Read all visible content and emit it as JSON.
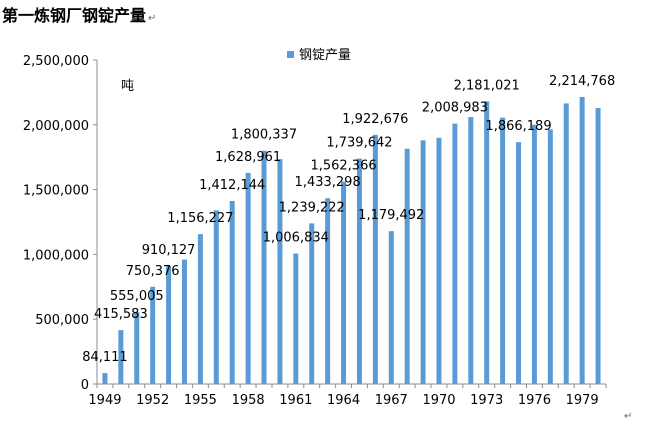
{
  "title": "第一炼钢厂钢锭产量",
  "return_mark": "↵",
  "chart_data": {
    "type": "bar",
    "title": "第一炼钢厂钢锭产量",
    "unit_label": "吨",
    "legend": "钢锭产量",
    "legend_position": "top",
    "bar_color": "#5b9bd5",
    "ylim": [
      0,
      2500000
    ],
    "y_ticks": [
      "0",
      "500,000",
      "1,000,000",
      "1,500,000",
      "2,000,000",
      "2,500,000"
    ],
    "x_ticks": [
      "1949",
      "1952",
      "1955",
      "1958",
      "1961",
      "1964",
      "1967",
      "1970",
      "1973",
      "1976",
      "1979"
    ],
    "grid": false,
    "categories": [
      "1949",
      "1950",
      "1951",
      "1952",
      "1953",
      "1954",
      "1955",
      "1956",
      "1957",
      "1958",
      "1959",
      "1960",
      "1961",
      "1962",
      "1963",
      "1964",
      "1965",
      "1966",
      "1967",
      "1968",
      "1969",
      "1970",
      "1971",
      "1972",
      "1973",
      "1974",
      "1975",
      "1976",
      "1977",
      "1978",
      "1979",
      "1980"
    ],
    "values": [
      84111,
      415583,
      555005,
      750376,
      910127,
      960000,
      1156227,
      1340000,
      1412144,
      1628961,
      1800337,
      1735000,
      1006834,
      1239222,
      1433298,
      1562366,
      1739642,
      1922676,
      1179492,
      1815000,
      1880000,
      1900000,
      2008983,
      2060000,
      2181021,
      2055000,
      1866189,
      2000000,
      1965000,
      2165000,
      2214768,
      2130000
    ],
    "data_labels": [
      {
        "index": 0,
        "text": "84,111"
      },
      {
        "index": 1,
        "text": "415,583"
      },
      {
        "index": 2,
        "text": "555,005"
      },
      {
        "index": 3,
        "text": "750,376"
      },
      {
        "index": 4,
        "text": "910,127"
      },
      {
        "index": 6,
        "text": "1,156,227"
      },
      {
        "index": 8,
        "text": "1,412,144"
      },
      {
        "index": 9,
        "text": "1,628,961"
      },
      {
        "index": 10,
        "text": "1,800,337"
      },
      {
        "index": 12,
        "text": "1,006,834"
      },
      {
        "index": 13,
        "text": "1,239,222"
      },
      {
        "index": 14,
        "text": "1,433,298"
      },
      {
        "index": 15,
        "text": "1,562,366"
      },
      {
        "index": 16,
        "text": "1,739,642"
      },
      {
        "index": 17,
        "text": "1,922,676"
      },
      {
        "index": 18,
        "text": "1,179,492"
      },
      {
        "index": 22,
        "text": "2,008,983"
      },
      {
        "index": 24,
        "text": "2,181,021"
      },
      {
        "index": 26,
        "text": "1,866,189"
      },
      {
        "index": 30,
        "text": "2,214,768"
      }
    ]
  }
}
